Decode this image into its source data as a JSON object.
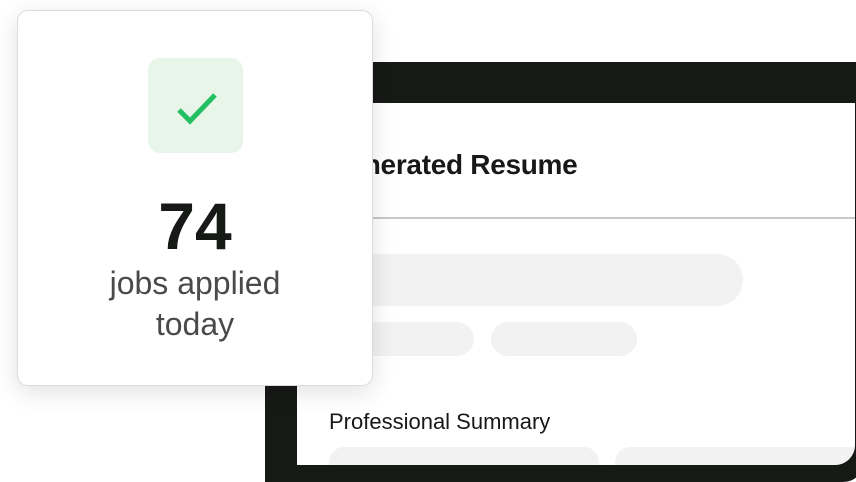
{
  "resume": {
    "title": "Generated Resume",
    "section_heading": "Professional Summary"
  },
  "stat_card": {
    "icon": "check-icon",
    "icon_color": "#22bf63",
    "value": "74",
    "label_line1": "jobs applied",
    "label_line2": "today"
  }
}
